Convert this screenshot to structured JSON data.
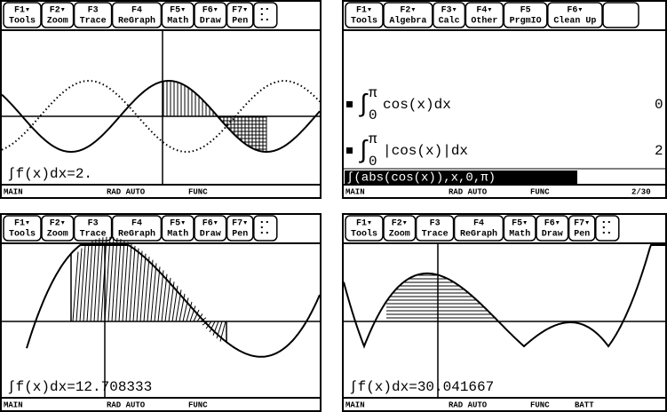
{
  "panels": [
    {
      "toolbar": [
        {
          "key": "F1▾",
          "label": "Tools"
        },
        {
          "key": "F2▾",
          "label": "Zoom"
        },
        {
          "key": "F3",
          "label": "Trace"
        },
        {
          "key": "F4",
          "label": "ReGraph"
        },
        {
          "key": "F5▾",
          "label": "Math"
        },
        {
          "key": "F6▾",
          "label": "Draw"
        },
        {
          "key": "F7▾",
          "label": "Pen"
        }
      ],
      "result": "∫f(x)dx=2.",
      "status": [
        "MAIN",
        "RAD AUTO",
        "FUNC"
      ]
    },
    {
      "toolbar": [
        {
          "key": "F1▾",
          "label": "Tools"
        },
        {
          "key": "F2▾",
          "label": "Algebra"
        },
        {
          "key": "F3▾",
          "label": "Calc"
        },
        {
          "key": "F4▾",
          "label": "Other"
        },
        {
          "key": "F5",
          "label": "PrgmIO"
        },
        {
          "key": "F6▾",
          "label": "Clean Up"
        }
      ],
      "history": [
        {
          "upper": "π",
          "lower": "0",
          "expression": "cos(x)dx",
          "result": "0"
        },
        {
          "upper": "π",
          "lower": "0",
          "expression": "|cos(x)|dx",
          "result": "2"
        }
      ],
      "entry": "∫(abs(cos(x)),x,0,π)",
      "status": [
        "MAIN",
        "RAD AUTO",
        "FUNC",
        "2/30"
      ]
    },
    {
      "toolbar": [
        {
          "key": "F1▾",
          "label": "Tools"
        },
        {
          "key": "F2▾",
          "label": "Zoom"
        },
        {
          "key": "F3",
          "label": "Trace"
        },
        {
          "key": "F4",
          "label": "ReGraph"
        },
        {
          "key": "F5▾",
          "label": "Math"
        },
        {
          "key": "F6▾",
          "label": "Draw"
        },
        {
          "key": "F7▾",
          "label": "Pen"
        }
      ],
      "result": "∫f(x)dx=12.708333",
      "status": [
        "MAIN",
        "RAD AUTO",
        "FUNC"
      ]
    },
    {
      "toolbar": [
        {
          "key": "F1▾",
          "label": "Tools"
        },
        {
          "key": "F2▾",
          "label": "Zoom"
        },
        {
          "key": "F3",
          "label": "Trace"
        },
        {
          "key": "F4",
          "label": "ReGraph"
        },
        {
          "key": "F5▾",
          "label": "Math"
        },
        {
          "key": "F6▾",
          "label": "Draw"
        },
        {
          "key": "F7▾",
          "label": "Pen"
        }
      ],
      "result": "∫f(x)dx=30.041667",
      "status": [
        "MAIN",
        "RAD AUTO",
        "FUNC",
        "BATT"
      ]
    }
  ]
}
